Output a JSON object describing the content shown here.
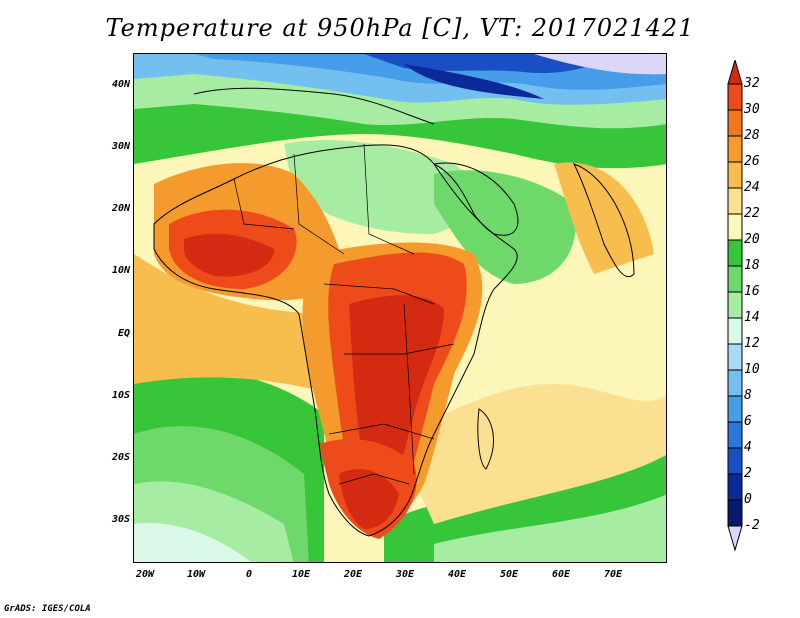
{
  "title": "Temperature at 950hPa [C], VT: 2017021421",
  "credit": "GrADS: IGES/COLA",
  "map": {
    "region": "Africa",
    "variable": "Temperature at 950hPa",
    "units": "C",
    "lon_range": [
      -22,
      80
    ],
    "lat_range": [
      -37,
      45
    ],
    "lat_labels": [
      "40N",
      "30N",
      "20N",
      "10N",
      "EQ",
      "10S",
      "20S",
      "30S"
    ],
    "lon_labels": [
      "20W",
      "10W",
      "0",
      "10E",
      "20E",
      "30E",
      "40E",
      "50E",
      "60E",
      "70E"
    ]
  },
  "colorbar": {
    "levels": [
      "32",
      "30",
      "28",
      "26",
      "24",
      "22",
      "20",
      "18",
      "16",
      "14",
      "12",
      "10",
      "8",
      "6",
      "4",
      "2",
      "0",
      "-2"
    ],
    "colors": [
      "#d42a12",
      "#ee4b1b",
      "#f27622",
      "#f59a2c",
      "#f7bd4d",
      "#fbe092",
      "#fcf6b8",
      "#37c53a",
      "#6ed86a",
      "#a6eca2",
      "#d9f8e8",
      "#a8dcf6",
      "#73bff0",
      "#479ee8",
      "#2b78da",
      "#1a4fc4",
      "#0b2a9a",
      "#0a1a6a",
      "#dcd6f8"
    ]
  }
}
